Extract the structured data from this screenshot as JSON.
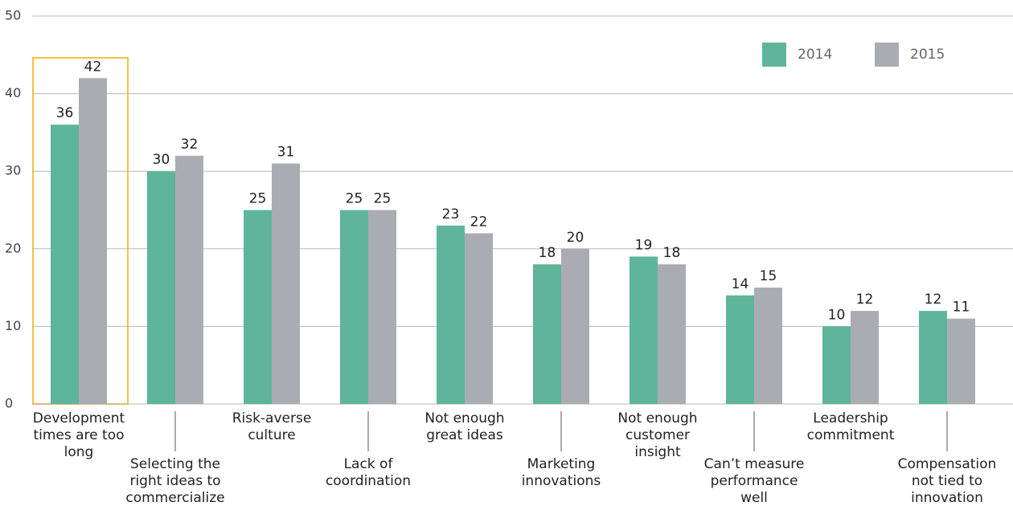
{
  "chart_data": {
    "type": "bar",
    "categories": [
      "Development\ntimes are too\nlong",
      "Selecting the\nright ideas to\ncommercialize",
      "Risk-averse\nculture",
      "Lack of\ncoordination",
      "Not enough\ngreat ideas",
      "Marketing\ninnovations",
      "Not enough\ncustomer\ninsight",
      "Can’t measure\nperformance\nwell",
      "Leadership\ncommitment",
      "Compensation\nnot tied to\ninnovation"
    ],
    "series": [
      {
        "name": "2014",
        "color": "#5fb49c",
        "values": [
          36,
          30,
          25,
          25,
          23,
          18,
          19,
          14,
          10,
          12
        ]
      },
      {
        "name": "2015",
        "color": "#a9adb3",
        "values": [
          42,
          32,
          31,
          25,
          22,
          20,
          18,
          15,
          12,
          11
        ]
      }
    ],
    "ylim": [
      0,
      50
    ],
    "yticks": [
      0,
      10,
      20,
      30,
      40,
      50
    ],
    "grid": true,
    "legend": "upper right"
  }
}
